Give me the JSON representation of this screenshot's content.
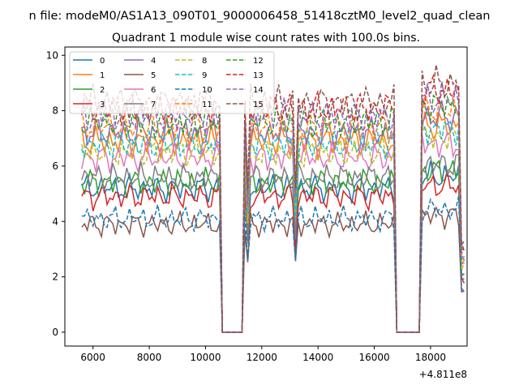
{
  "figure_title": "n file: modeM0/AS1A13_090T01_9000006458_51418cztM0_level2_quad_clean",
  "chart_data": {
    "type": "line",
    "title": "Quadrant 1 module wise count rates with 100.0s bins.",
    "xlabel": "",
    "ylabel": "",
    "x_offset_label": "+4.811e8",
    "xlim": [
      5000,
      19300
    ],
    "ylim": [
      -0.5,
      10.3
    ],
    "xticks": [
      6000,
      8000,
      10000,
      12000,
      14000,
      16000,
      18000
    ],
    "yticks": [
      0,
      2,
      4,
      6,
      8,
      10
    ],
    "grid": false,
    "legend": {
      "placement": "upper-left",
      "columns": 4
    },
    "x_segments": [
      {
        "start": 5600,
        "end": 10500,
        "step": 100
      },
      {
        "start": 10600,
        "end": 11300,
        "step": 100,
        "zero": true
      },
      {
        "start": 11400,
        "end": 16700,
        "step": 100
      },
      {
        "start": 16800,
        "end": 17600,
        "step": 100,
        "zero": true
      },
      {
        "start": 17700,
        "end": 19200,
        "step": 100
      }
    ],
    "series": [
      {
        "name": "0",
        "color": "#1f77b4",
        "dash": false,
        "level": 5.2
      },
      {
        "name": "1",
        "color": "#ff7f0e",
        "dash": false,
        "level": 6.9
      },
      {
        "name": "2",
        "color": "#2ca02c",
        "dash": false,
        "level": 5.4
      },
      {
        "name": "3",
        "color": "#d62728",
        "dash": false,
        "level": 4.9
      },
      {
        "name": "4",
        "color": "#9467bd",
        "dash": false,
        "level": 7.2
      },
      {
        "name": "5",
        "color": "#8c564b",
        "dash": false,
        "level": 3.9
      },
      {
        "name": "6",
        "color": "#e377c2",
        "dash": false,
        "level": 6.3
      },
      {
        "name": "7",
        "color": "#7f7f7f",
        "dash": false,
        "level": 5.6
      },
      {
        "name": "8",
        "color": "#bcbd22",
        "dash": true,
        "level": 6.5
      },
      {
        "name": "9",
        "color": "#17becf",
        "dash": true,
        "level": 6.8
      },
      {
        "name": "10",
        "color": "#1f77b4",
        "dash": true,
        "level": 4.1
      },
      {
        "name": "11",
        "color": "#ff7f0e",
        "dash": true,
        "level": 7.4
      },
      {
        "name": "12",
        "color": "#2ca02c",
        "dash": true,
        "level": 7.6
      },
      {
        "name": "13",
        "color": "#d62728",
        "dash": true,
        "level": 8.1
      },
      {
        "name": "14",
        "color": "#9467bd",
        "dash": true,
        "level": 7.8
      },
      {
        "name": "15",
        "color": "#8c564b",
        "dash": true,
        "level": 8.3
      }
    ]
  }
}
